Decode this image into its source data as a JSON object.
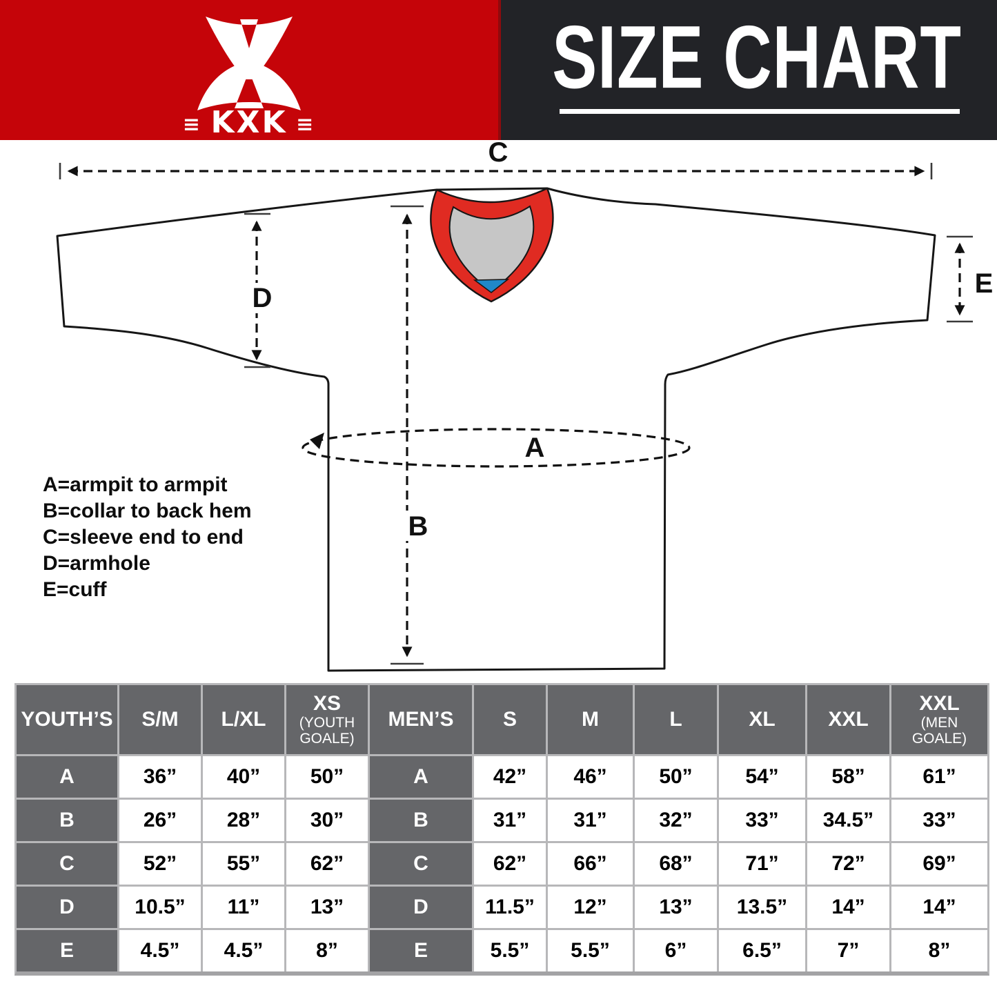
{
  "colors": {
    "header_red": "#c50409",
    "header_red_edge": "#8f0a0d",
    "header_dark": "#222327",
    "table_gray": "#656669",
    "grid_gray": "#b7b7b9",
    "table_shadow": "#a3a3a5",
    "ink": "#111111",
    "collar_band": "#e02b22",
    "collar_inner": "#c6c6c6",
    "collar_accent": "#2087c9"
  },
  "header": {
    "brand": "KXK",
    "brand_left_mark": "≡",
    "brand_right_mark": "≡",
    "title": "SIZE CHART"
  },
  "diagram": {
    "labels": {
      "a": "A",
      "b": "B",
      "c": "C",
      "d": "D",
      "e": "E"
    },
    "legend": [
      "A=armpit to armpit",
      "B=collar to back hem",
      "C=sleeve end to end",
      "D=armhole",
      "E=cuff"
    ]
  },
  "table": {
    "youth": {
      "label": "YOUTH’S",
      "columns": [
        {
          "size": "S/M"
        },
        {
          "size": "L/XL"
        },
        {
          "size": "XS",
          "note": "(YOUTH GOALE)"
        }
      ],
      "rows": [
        {
          "key": "A",
          "values": [
            "36”",
            "40”",
            "50”"
          ]
        },
        {
          "key": "B",
          "values": [
            "26”",
            "28”",
            "30”"
          ]
        },
        {
          "key": "C",
          "values": [
            "52”",
            "55”",
            "62”"
          ]
        },
        {
          "key": "D",
          "values": [
            "10.5”",
            "11”",
            "13”"
          ]
        },
        {
          "key": "E",
          "values": [
            "4.5”",
            "4.5”",
            "8”"
          ]
        }
      ]
    },
    "men": {
      "label": "MEN’S",
      "columns": [
        {
          "size": "S"
        },
        {
          "size": "M"
        },
        {
          "size": "L"
        },
        {
          "size": "XL"
        },
        {
          "size": "XXL"
        },
        {
          "size": "XXL",
          "note": "(MEN GOALE)"
        }
      ],
      "rows": [
        {
          "key": "A",
          "values": [
            "42”",
            "46”",
            "50”",
            "54”",
            "58”",
            "61”"
          ]
        },
        {
          "key": "B",
          "values": [
            "31”",
            "31”",
            "32”",
            "33”",
            "34.5”",
            "33”"
          ]
        },
        {
          "key": "C",
          "values": [
            "62”",
            "66”",
            "68”",
            "71”",
            "72”",
            "69”"
          ]
        },
        {
          "key": "D",
          "values": [
            "11.5”",
            "12”",
            "13”",
            "13.5”",
            "14”",
            "14”"
          ]
        },
        {
          "key": "E",
          "values": [
            "5.5”",
            "5.5”",
            "6”",
            "6.5”",
            "7”",
            "8”"
          ]
        }
      ]
    }
  }
}
